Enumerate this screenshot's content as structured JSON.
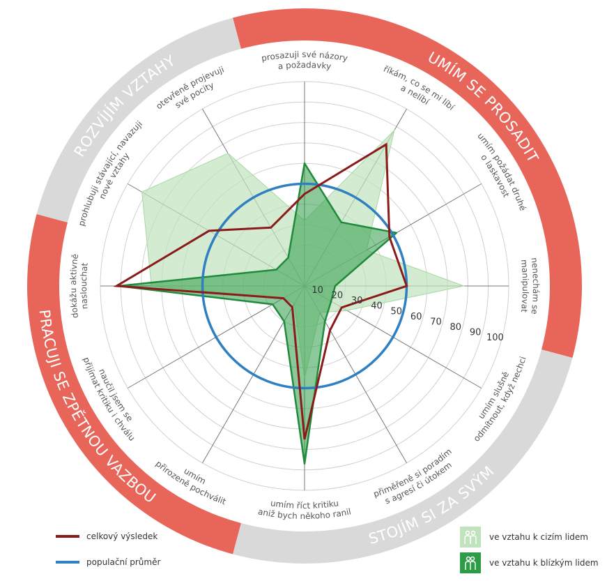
{
  "colors": {
    "overall": "#8b1a1a",
    "population": "#2f7fc1",
    "strangers": "#c0e3bd",
    "close": "#2e9c47",
    "sector_red": "#e8655a",
    "sector_grey": "#d9d9d9"
  },
  "sectors": [
    {
      "label": "UMÍM SE PROSADIT",
      "color": "red"
    },
    {
      "label": "STOJÍM SI ZA SVÝM",
      "color": "grey"
    },
    {
      "label": "PRACUJI SE ZPĚTNOU VAZBOU",
      "color": "red"
    },
    {
      "label": "ROZVÍJÍM VZTAHY",
      "color": "grey"
    }
  ],
  "chart_data": {
    "type": "radar",
    "axes": [
      [
        "prosazuji své názory",
        "a požadavky"
      ],
      [
        "říkám, co se mi líbí",
        "a nelíbí"
      ],
      [
        "umím požádat druhé",
        "o laskavost"
      ],
      [
        "nenechám se",
        "manipulovat"
      ],
      [
        "umím slušně",
        "odmítnout, když nechci"
      ],
      [
        "přiměřeně si poradím",
        "s agresí či útokem"
      ],
      [
        "umím říct kritiku",
        "aniž bych někoho ranil"
      ],
      [
        "umím",
        "přirozeně pochválit"
      ],
      [
        "naučil jsem se",
        "přijímat kritiku i chválu"
      ],
      [
        "dokážu aktivně",
        "naslouchat"
      ],
      [
        "prohlubuji stávající, navazuji",
        "nové vztahy"
      ],
      [
        "otevřeně projevuji",
        "své pocity"
      ]
    ],
    "ticks": [
      "10",
      "20",
      "30",
      "40",
      "50",
      "60",
      "70",
      "80",
      "90",
      "100"
    ],
    "rmax": 100,
    "series": [
      {
        "name": "ve vztahu k cizím lidem",
        "values": [
          32,
          88,
          35,
          78,
          24,
          15,
          45,
          10,
          12,
          75,
          92,
          75
        ]
      },
      {
        "name": "ve vztahu k blízkým lidem",
        "values": [
          60,
          36,
          52,
          15,
          15,
          20,
          87,
          20,
          18,
          91,
          16,
          16
        ]
      },
      {
        "name": "celkový výsledek",
        "values": [
          45,
          80,
          48,
          50,
          21,
          25,
          75,
          12,
          12,
          92,
          54,
          33
        ]
      },
      {
        "name": "populační průměr",
        "values": [
          50,
          50,
          50,
          50,
          50,
          50,
          50,
          50,
          50,
          50,
          50,
          50
        ]
      }
    ]
  },
  "legend": {
    "overall": "celkový výsledek",
    "population": "populační průměr",
    "strangers": "ve vztahu k cizím lidem",
    "close": "ve vztahu k blízkým lidem"
  }
}
